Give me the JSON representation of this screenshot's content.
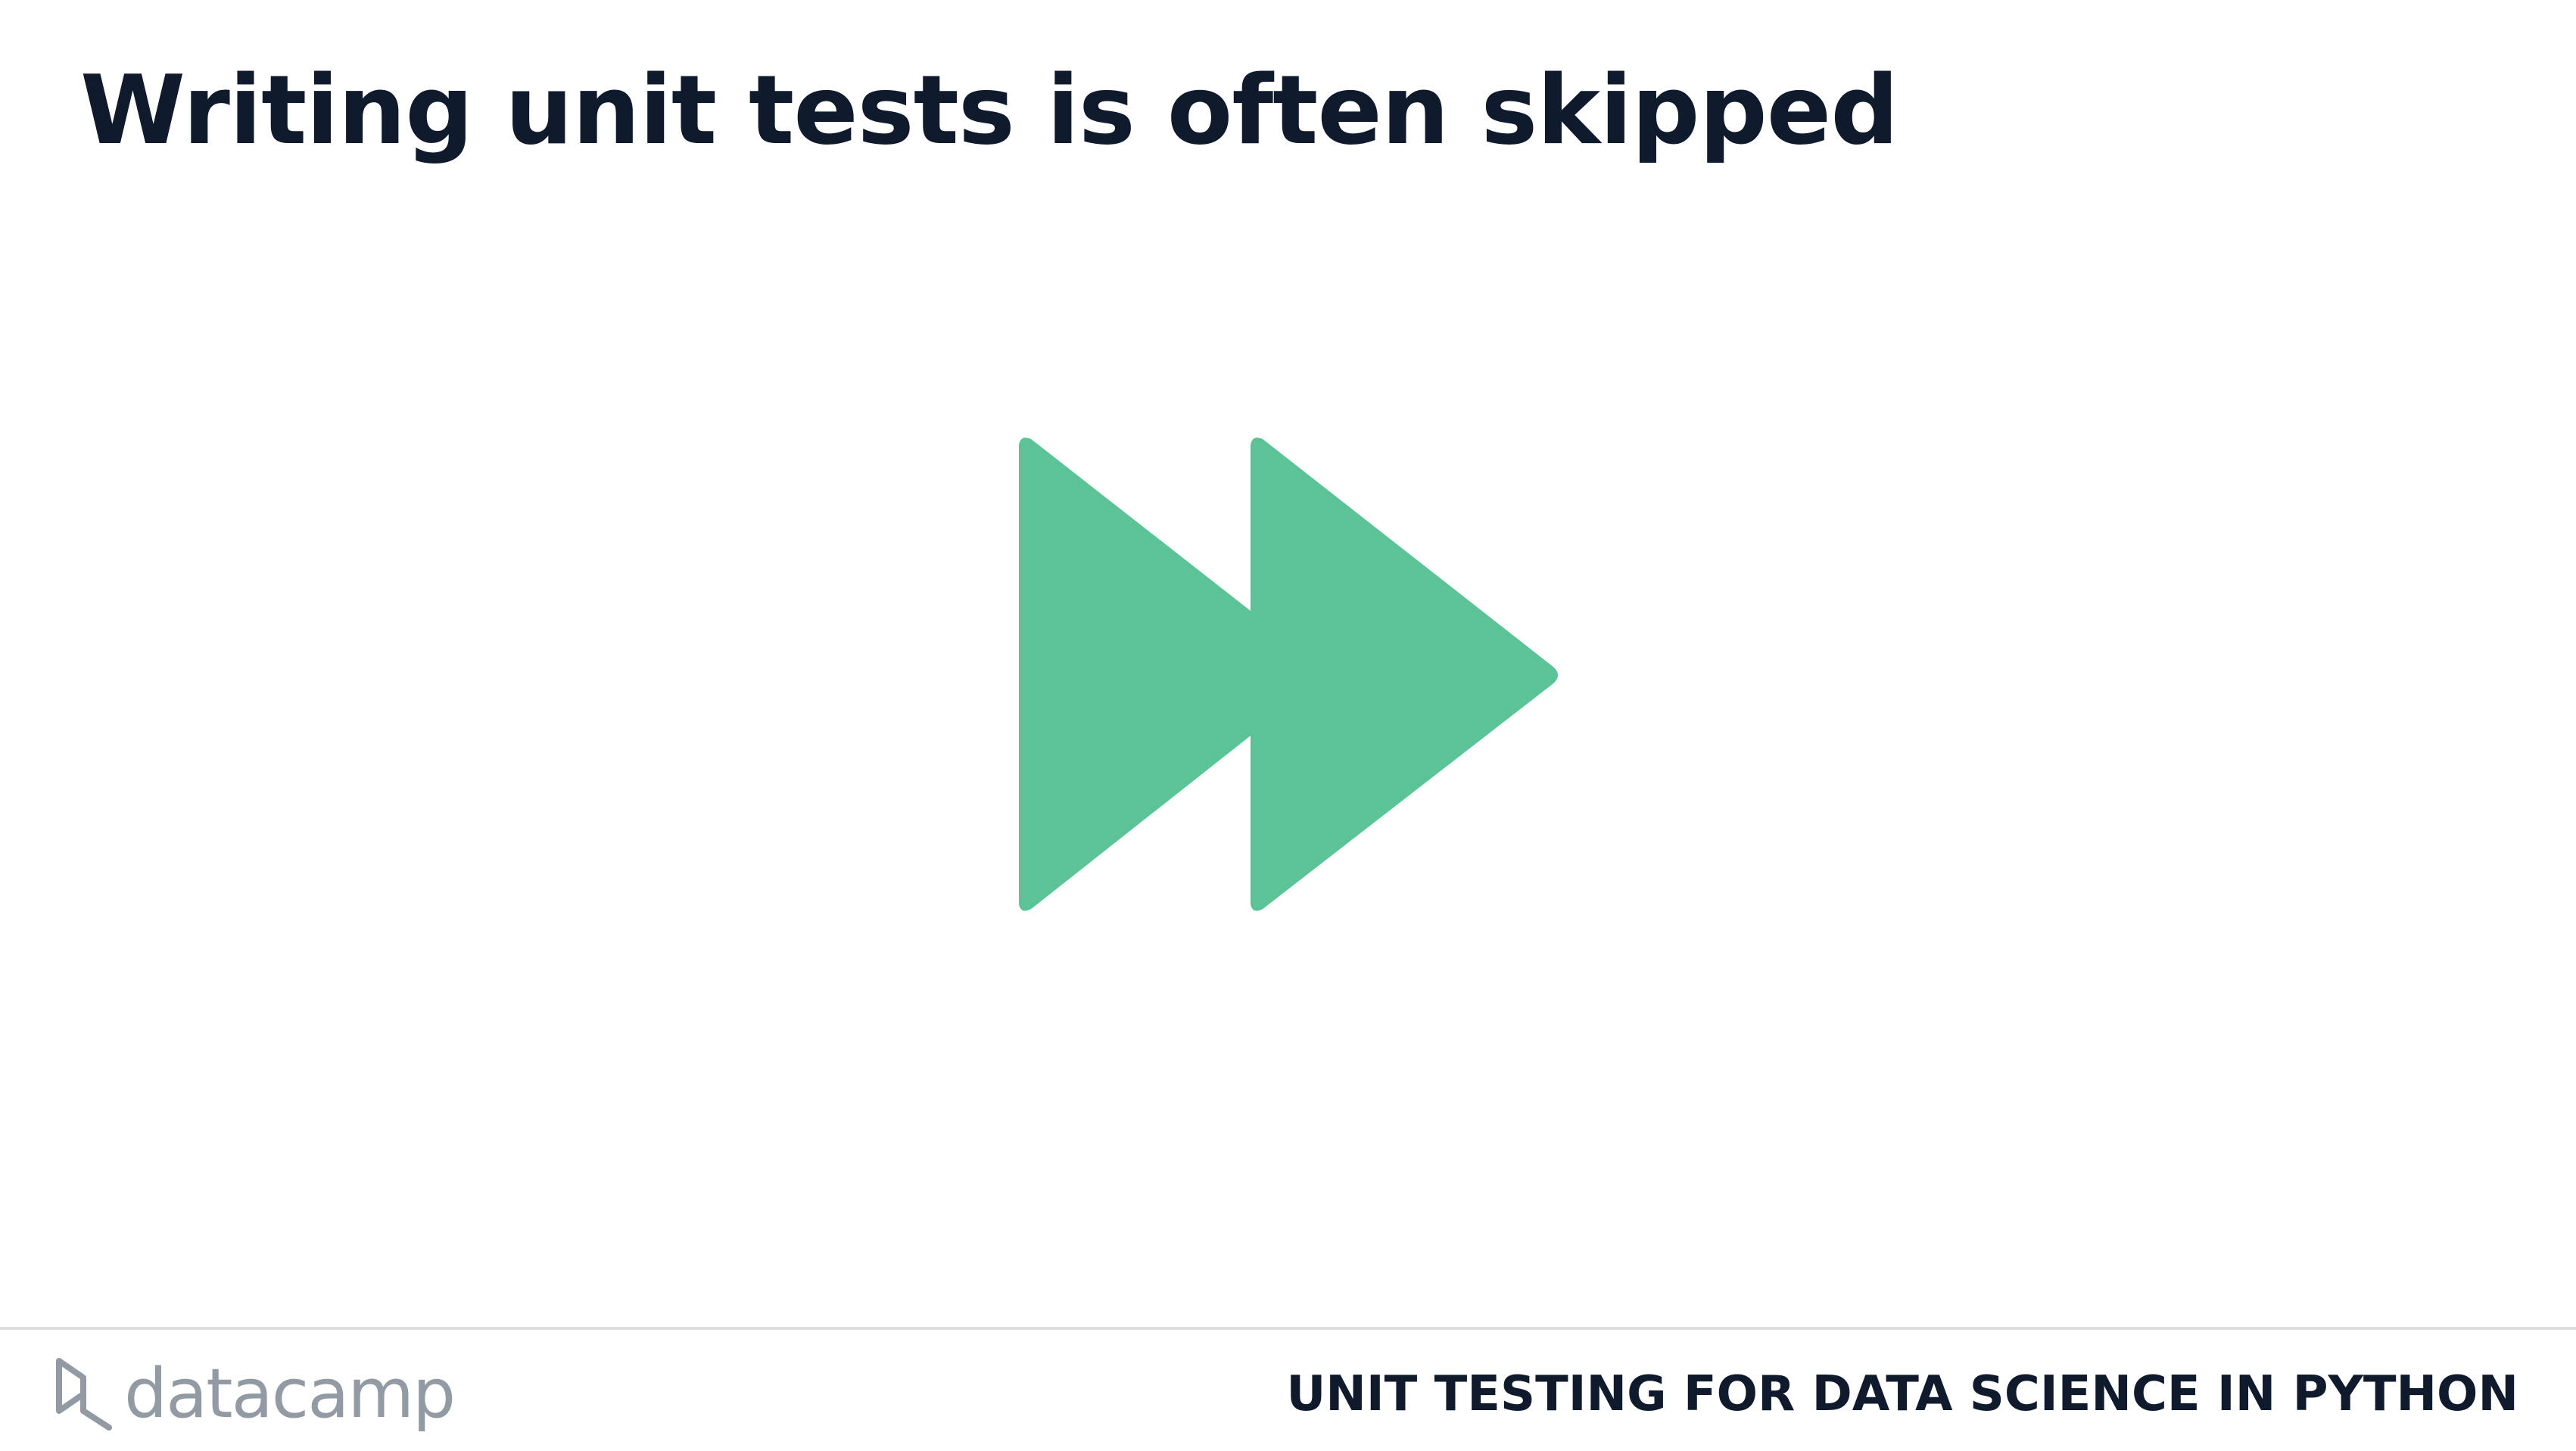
{
  "slide": {
    "title": "Writing unit tests is often skipped"
  },
  "graphic": {
    "icon": "fast-forward-icon",
    "color": "#5bc396"
  },
  "footer": {
    "logo_text": "datacamp",
    "logo_icon": "datacamp-logo-icon",
    "course_title": "UNIT TESTING FOR DATA SCIENCE IN PYTHON"
  },
  "colors": {
    "title": "#0f1b2d",
    "logo": "#929aa3",
    "divider": "#dcdedd"
  }
}
